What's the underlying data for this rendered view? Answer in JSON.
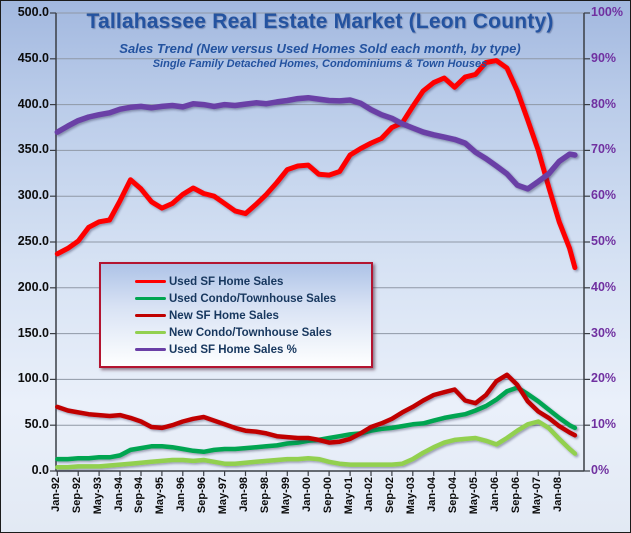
{
  "title": "Tallahassee Real Estate Market (Leon County)",
  "subtitle": "Sales Trend (New versus Used Homes Sold each month, by type)",
  "subtitle2": "Single Family Detached Homes, Condominiums & Town Houses",
  "colors": {
    "title_blue": "#2453a0",
    "legend_text_blue": "#17375e",
    "legend_border_red": "#b31430",
    "right_axis_purple": "#7030a0",
    "gridline_gray": "#8f98a6"
  },
  "chart_data": {
    "type": "line",
    "title": "Tallahassee Real Estate Market (Leon County)",
    "subtitle": "Sales Trend (New versus Used Homes Sold each month, by type)",
    "subtitle2": "Single Family Detached Homes, Condominiums & Town Houses",
    "grid": true,
    "legend_position": "middle-left",
    "x_unit": "month",
    "months_per_tick": 8,
    "total_months": 202,
    "x_tick_labels": [
      "Jan-92",
      "Sep-92",
      "May-93",
      "Jan-94",
      "Sep-94",
      "May-95",
      "Jan-96",
      "Sep-96",
      "May-97",
      "Jan-98",
      "Sep-98",
      "May-99",
      "Jan-00",
      "Sep-00",
      "May-01",
      "Jan-02",
      "Sep-02",
      "May-03",
      "Jan-04",
      "Sep-04",
      "May-05",
      "Jan-06",
      "Sep-06",
      "May-07",
      "Jan-08"
    ],
    "left_axis": {
      "min": 0,
      "max": 500,
      "step": 50,
      "labels": [
        "500.0",
        "450.0",
        "400.0",
        "350.0",
        "300.0",
        "250.0",
        "200.0",
        "150.0",
        "100.0",
        "50.0",
        "0.0"
      ]
    },
    "right_axis": {
      "min": 0,
      "max": 100,
      "step": 10,
      "unit": "%",
      "labels": [
        "100%",
        "90%",
        "80%",
        "70%",
        "60%",
        "50%",
        "40%",
        "30%",
        "20%",
        "10%",
        "0%"
      ]
    },
    "x_months": [
      0,
      4,
      8,
      12,
      16,
      20,
      24,
      28,
      32,
      36,
      40,
      44,
      48,
      52,
      56,
      60,
      64,
      68,
      72,
      76,
      80,
      84,
      88,
      92,
      96,
      100,
      104,
      108,
      112,
      116,
      120,
      124,
      128,
      132,
      136,
      140,
      144,
      148,
      152,
      156,
      160,
      164,
      168,
      172,
      176,
      180,
      184,
      188,
      192,
      196,
      198
    ],
    "series": [
      {
        "name": "Used SF Home Sales",
        "axis": "left",
        "color": "#fe0000",
        "width": 5,
        "values": [
          237,
          243,
          251,
          266,
          272,
          274,
          295,
          318,
          308,
          294,
          287,
          292,
          302,
          309,
          303,
          300,
          292,
          284,
          281,
          291,
          302,
          315,
          329,
          333,
          334,
          324,
          323,
          327,
          345,
          352,
          358,
          363,
          375,
          380,
          398,
          415,
          424,
          429,
          419,
          430,
          433,
          446,
          448,
          440,
          415,
          383,
          350,
          310,
          272,
          243,
          222
        ]
      },
      {
        "name": "Used Condo/Townhouse Sales",
        "axis": "left",
        "color": "#00a551",
        "width": 4.5,
        "values": [
          13,
          13,
          14,
          14,
          15,
          15,
          17,
          23,
          25,
          27,
          27,
          26,
          24,
          22,
          21,
          23,
          24,
          24,
          25,
          26,
          27,
          28,
          30,
          31,
          33,
          34,
          36,
          38,
          40,
          41,
          44,
          46,
          47,
          49,
          51,
          52,
          55,
          58,
          60,
          62,
          66,
          71,
          78,
          87,
          91,
          84,
          76,
          67,
          58,
          50,
          47
        ]
      },
      {
        "name": "New SF Home Sales",
        "axis": "left",
        "color": "#c00000",
        "width": 4.5,
        "values": [
          70,
          66,
          64,
          62,
          61,
          60,
          61,
          58,
          54,
          48,
          47,
          50,
          54,
          57,
          59,
          55,
          51,
          47,
          44,
          43,
          41,
          38,
          37,
          36,
          36,
          34,
          31,
          32,
          35,
          41,
          48,
          52,
          57,
          64,
          70,
          77,
          83,
          86,
          89,
          77,
          74,
          83,
          98,
          105,
          94,
          76,
          65,
          58,
          49,
          42,
          39
        ]
      },
      {
        "name": "New Condo/Townhouse Sales",
        "axis": "left",
        "color": "#92d050",
        "width": 4.5,
        "values": [
          4,
          4,
          5,
          5,
          5,
          6,
          7,
          8,
          9,
          10,
          11,
          12,
          12,
          11,
          12,
          10,
          8,
          8,
          9,
          10,
          11,
          12,
          13,
          13,
          14,
          13,
          10,
          8,
          7,
          7,
          7,
          7,
          7,
          8,
          13,
          20,
          26,
          31,
          34,
          35,
          36,
          33,
          29,
          36,
          44,
          51,
          54,
          47,
          35,
          24,
          19
        ]
      },
      {
        "name": "Used SF Home Sales %",
        "axis": "right",
        "color": "#6a3fa6",
        "width": 5.5,
        "values": [
          74,
          75.3,
          76.5,
          77.3,
          77.8,
          78.2,
          79,
          79.4,
          79.6,
          79.3,
          79.6,
          79.8,
          79.5,
          80.2,
          80,
          79.6,
          80,
          79.8,
          80.1,
          80.4,
          80.2,
          80.6,
          80.9,
          81.3,
          81.5,
          81.2,
          80.9,
          80.8,
          81,
          80.3,
          78.9,
          77.8,
          77,
          75.8,
          74.9,
          74,
          73.4,
          72.9,
          72.4,
          71.6,
          69.6,
          68.2,
          66.6,
          64.9,
          62.4,
          61.6,
          63.2,
          64.9,
          67.6,
          69.2,
          69
        ]
      }
    ]
  }
}
